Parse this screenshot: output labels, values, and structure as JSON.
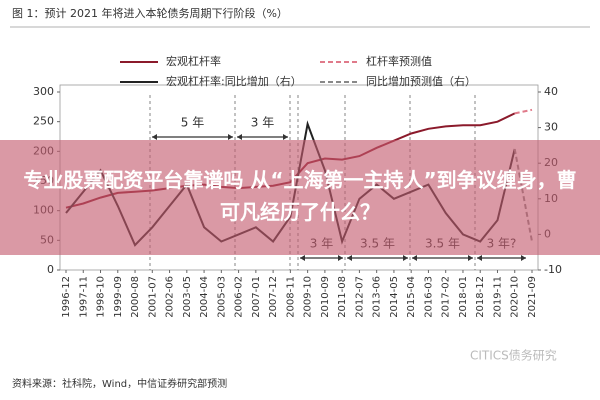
{
  "chart_data": {
    "type": "line",
    "title": "图 1：预计 2021 年将进入本轮债务周期下行阶段（%）",
    "categories": [
      "1996-12",
      "1997-11",
      "1998-10",
      "1999-09",
      "2000-08",
      "2001-07",
      "2002-06",
      "2003-05",
      "2004-04",
      "2005-03",
      "2006-02",
      "2007-01",
      "2007-12",
      "2008-11",
      "2009-10",
      "2010-09",
      "2011-08",
      "2012-07",
      "2013-06",
      "2014-05",
      "2015-04",
      "2016-03",
      "2017-02",
      "2018-01",
      "2018-12",
      "2019-11",
      "2020-10",
      "2021-09"
    ],
    "series": [
      {
        "name": "宏观杠杆率",
        "color": "#8b1a2b",
        "dash": false,
        "axis": "y",
        "values": [
          105,
          112,
          122,
          130,
          132,
          134,
          138,
          142,
          144,
          140,
          138,
          140,
          142,
          148,
          180,
          188,
          186,
          192,
          206,
          218,
          230,
          238,
          242,
          244,
          244,
          250,
          264,
          null
        ]
      },
      {
        "name": "杠杆率预测值",
        "color": "#e07a8a",
        "dash": true,
        "axis": "y",
        "values": [
          null,
          null,
          null,
          null,
          null,
          null,
          null,
          null,
          null,
          null,
          null,
          null,
          null,
          null,
          null,
          null,
          null,
          null,
          null,
          null,
          null,
          null,
          null,
          null,
          null,
          null,
          264,
          270
        ]
      },
      {
        "name": "宏观杠杆率:同比增加（右）",
        "color": "#222222",
        "dash": false,
        "axis": "y2",
        "values": [
          6,
          12,
          18,
          8,
          -3,
          2,
          8,
          14,
          2,
          -2,
          0,
          2,
          -2,
          5,
          31,
          18,
          -2,
          10,
          14,
          10,
          12,
          14,
          6,
          0,
          -2,
          4,
          24,
          null
        ]
      },
      {
        "name": "同比增加预测值（右）",
        "color": "#888888",
        "dash": true,
        "axis": "y2",
        "values": [
          null,
          null,
          null,
          null,
          null,
          null,
          null,
          null,
          null,
          null,
          null,
          null,
          null,
          null,
          null,
          null,
          null,
          null,
          null,
          null,
          null,
          null,
          null,
          null,
          null,
          null,
          24,
          -2
        ]
      }
    ],
    "ylim": [
      0,
      300
    ],
    "yticks": [
      0,
      50,
      100,
      150,
      200,
      250,
      300
    ],
    "y2lim": [
      -10,
      40
    ],
    "y2ticks": [
      -10,
      0,
      10,
      20,
      30,
      40
    ],
    "annotations": [
      "5 年",
      "3 年",
      "3 年",
      "3.5 年",
      "3.5 年",
      "3 年?"
    ],
    "source": "资料来源：社科院，Wind，中信证券研究部预测",
    "watermark": "CITICS债务研究"
  },
  "banner": "专业股票配资平台靠谱吗 从“上海第一主持人”到争议缠身，曹可凡经历了什么？"
}
